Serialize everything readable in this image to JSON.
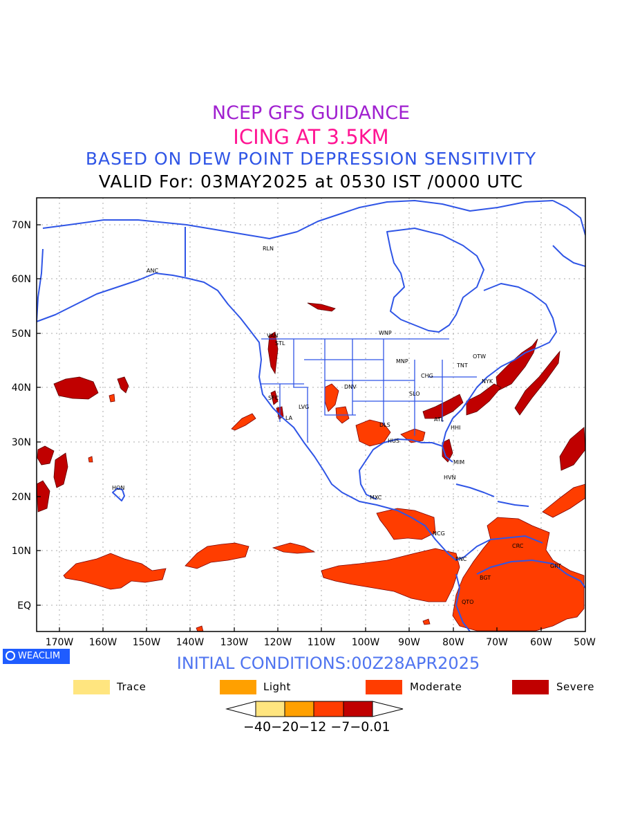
{
  "titles": {
    "line1": "NCEP GFS GUIDANCE",
    "line2": "ICING AT 3.5KM",
    "line3": "BASED ON DEW POINT DEPRESSION SENSITIVITY",
    "line4": "VALID For: 03MAY2025 at 0530 IST /0000 UTC"
  },
  "axes": {
    "lat_labels": [
      "70N",
      "60N",
      "50N",
      "40N",
      "30N",
      "20N",
      "10N",
      "EQ"
    ],
    "lon_labels": [
      "170W",
      "160W",
      "150W",
      "140W",
      "130W",
      "120W",
      "110W",
      "100W",
      "90W",
      "80W",
      "70W",
      "60W",
      "50W"
    ]
  },
  "cities": [
    "RLN",
    "ANC",
    "VAN",
    "STL",
    "WNP",
    "OTW",
    "MNP",
    "TNT",
    "CHG",
    "NYK",
    "DNV",
    "SLO",
    "SFC",
    "LVG",
    "LA",
    "DLS",
    "ATL",
    "HHI",
    "HUS",
    "MIM",
    "HVN",
    "HON",
    "MXC",
    "NCG",
    "PNC",
    "CRC",
    "GRT",
    "BGT",
    "QTO"
  ],
  "footer": {
    "logo": "WEACLIM",
    "initial": "INITIAL CONDITIONS:00Z28APR2025"
  },
  "legend": [
    {
      "label": "Trace",
      "color": "#ffe57f"
    },
    {
      "label": "Light",
      "color": "#ffa000"
    },
    {
      "label": "Moderate",
      "color": "#ff3d00"
    },
    {
      "label": "Severe",
      "color": "#c00000"
    }
  ],
  "colorbar": {
    "ticks": "−40−20−12 −7−0.01",
    "colors": [
      "#ffe57f",
      "#ffa000",
      "#ff3d00",
      "#c00000"
    ]
  },
  "colors": {
    "coast": "#2f55e6",
    "grid": "#aaaaaa",
    "moderate": "#ff3d00",
    "severe": "#c00000"
  }
}
